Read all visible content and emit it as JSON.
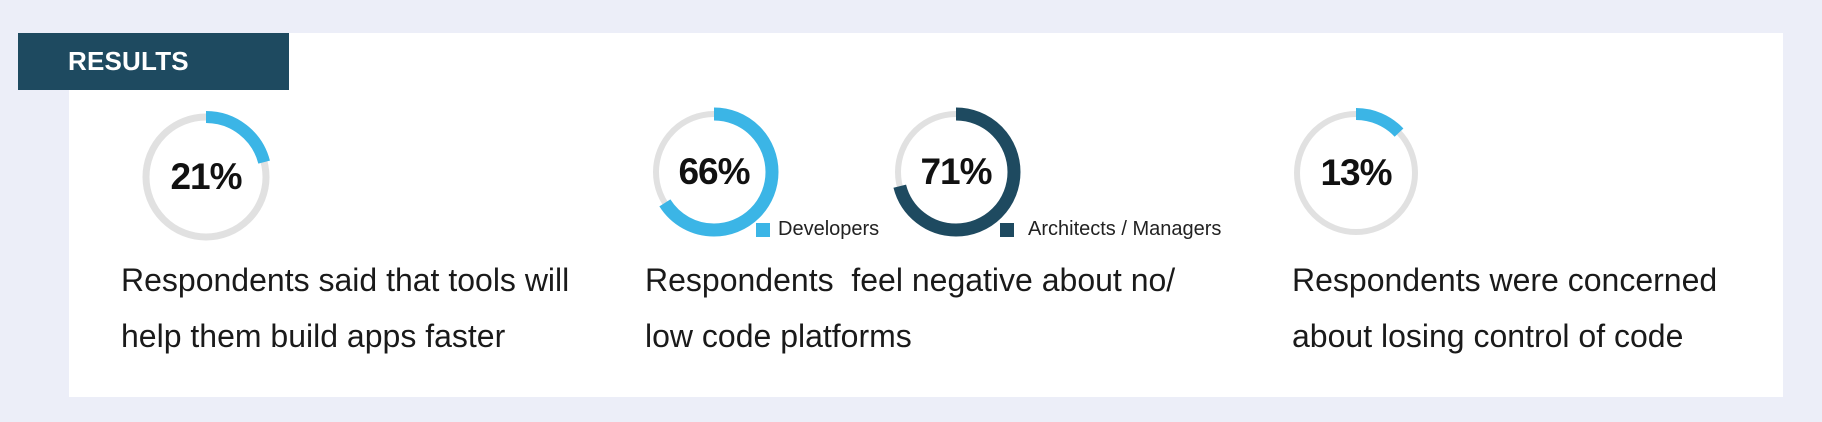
{
  "header": {
    "title": "RESULTS"
  },
  "colors": {
    "accent_light": "#3bb5e6",
    "accent_dark": "#1e4a60",
    "track": "#e1e1e1",
    "banner": "#1e4a60"
  },
  "stats": [
    {
      "value_label": "21%",
      "caption_line1": "Respondents said that tools will",
      "caption_line2": "help them build apps faster"
    },
    {
      "caption_line1": "Respondents  feel negative about no/",
      "caption_line2": "low code platforms",
      "groups": [
        {
          "value_label": "66%",
          "legend": "Developers"
        },
        {
          "value_label": "71%",
          "legend": "Architects / Managers"
        }
      ]
    },
    {
      "value_label": "13%",
      "caption_line1": "Respondents were concerned",
      "caption_line2": "about losing control of code"
    }
  ],
  "chart_data": [
    {
      "type": "pie",
      "values": [
        21
      ],
      "unit": "%",
      "color": "#3bb5e6"
    },
    {
      "type": "pie",
      "series": [
        {
          "name": "Developers",
          "values": [
            66
          ],
          "color": "#3bb5e6"
        },
        {
          "name": "Architects / Managers",
          "values": [
            71
          ],
          "color": "#1e4a60"
        }
      ],
      "unit": "%",
      "legend": "bottom-right of each ring"
    },
    {
      "type": "pie",
      "values": [
        13
      ],
      "unit": "%",
      "color": "#3bb5e6"
    }
  ]
}
